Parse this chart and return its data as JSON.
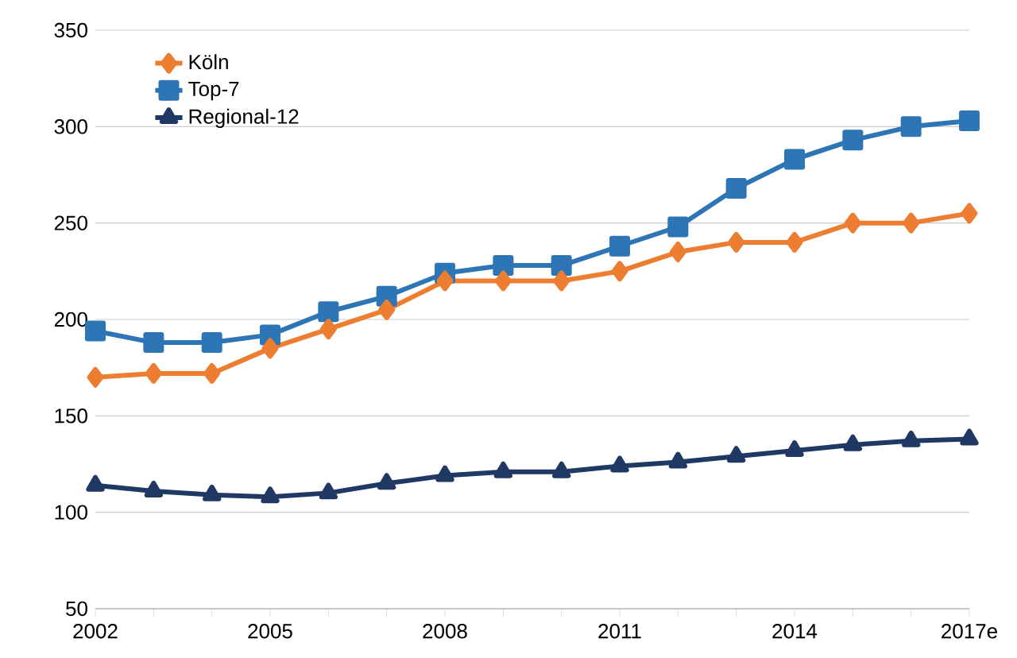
{
  "chart_data": {
    "type": "line",
    "categories": [
      "2002",
      null,
      null,
      "2005",
      null,
      null,
      "2008",
      null,
      null,
      "2011",
      null,
      null,
      "2014",
      null,
      null,
      "2017e"
    ],
    "series": [
      {
        "name": "Köln",
        "color": "#ed7d31",
        "marker": "diamond",
        "values": [
          170,
          172,
          172,
          185,
          195,
          205,
          220,
          220,
          220,
          225,
          235,
          240,
          240,
          250,
          250,
          255
        ]
      },
      {
        "name": "Top-7",
        "color": "#2e75b6",
        "marker": "square",
        "values": [
          194,
          188,
          188,
          192,
          204,
          212,
          224,
          228,
          228,
          238,
          248,
          268,
          283,
          293,
          300,
          303
        ]
      },
      {
        "name": "Regional-12",
        "color": "#1f3864",
        "marker": "triangle",
        "values": [
          114,
          111,
          109,
          108,
          110,
          115,
          119,
          121,
          121,
          124,
          126,
          129,
          132,
          135,
          137,
          138
        ]
      }
    ],
    "ylim": [
      50,
      350
    ],
    "yticks": [
      50,
      100,
      150,
      200,
      250,
      300,
      350
    ],
    "grid": "y",
    "legend": "top left"
  }
}
